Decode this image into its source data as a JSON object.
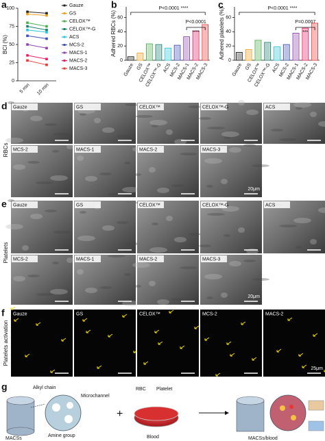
{
  "chart_data": [
    {
      "panel": "a",
      "type": "line",
      "y_label": "BCI (%)",
      "categories": [
        "5 min",
        "10 min"
      ],
      "ylim": [
        0,
        100
      ],
      "yticks": [
        0,
        25,
        50,
        75,
        100
      ],
      "series": [
        {
          "name": "Gauze",
          "color": "#222222",
          "values": [
            95,
            93
          ]
        },
        {
          "name": "GS",
          "color": "#f0a020",
          "values": [
            92,
            90
          ]
        },
        {
          "name": "CELOX™",
          "color": "#4caf50",
          "values": [
            80,
            75
          ]
        },
        {
          "name": "CELOX™-G",
          "color": "#1a7f6e",
          "values": [
            75,
            70
          ]
        },
        {
          "name": "ACS",
          "color": "#26c6da",
          "values": [
            70,
            67
          ]
        },
        {
          "name": "MCS-2",
          "color": "#3f51b5",
          "values": [
            62,
            58
          ]
        },
        {
          "name": "MACS-1",
          "color": "#8e44ad",
          "values": [
            50,
            45
          ]
        },
        {
          "name": "MACS-2",
          "color": "#e91e63",
          "values": [
            35,
            30
          ]
        },
        {
          "name": "MACS-3",
          "color": "#e53935",
          "values": [
            28,
            22
          ]
        }
      ]
    },
    {
      "panel": "b",
      "type": "bar",
      "y_label": "Adhered RBCs (%)",
      "categories": [
        "Gauze",
        "GS",
        "CELOX™",
        "CELOX™-G",
        "ACS",
        "MCS-2",
        "MACS-1",
        "MACS-2",
        "MACS-3"
      ],
      "values": [
        5,
        10,
        23,
        22,
        17,
        21,
        33,
        41,
        50
      ],
      "colors": [
        "#222222",
        "#f0a020",
        "#4caf50",
        "#1a7f6e",
        "#26c6da",
        "#3f51b5",
        "#8e44ad",
        "#e91e63",
        "#e53935"
      ],
      "ylim": [
        0,
        75
      ],
      "yticks": [
        0,
        20,
        40,
        60
      ],
      "annotations": [
        "P<0.0001 ****",
        "P<0.0001",
        "****"
      ]
    },
    {
      "panel": "c",
      "type": "bar",
      "y_label": "Adhered platelets (%)",
      "categories": [
        "Gauze",
        "GS",
        "CELOX™",
        "CELOX™-G",
        "ACS",
        "MCS-2",
        "MACS-1",
        "MACS-2",
        "MACS-3"
      ],
      "values": [
        11,
        15,
        28,
        25,
        19,
        22,
        38,
        45,
        52
      ],
      "colors": [
        "#222222",
        "#f0a020",
        "#4caf50",
        "#1a7f6e",
        "#26c6da",
        "#3f51b5",
        "#8e44ad",
        "#e91e63",
        "#e53935"
      ],
      "ylim": [
        0,
        75
      ],
      "yticks": [
        0,
        20,
        40,
        60
      ],
      "annotations": [
        "P<0.0001 ****",
        "P=0.0007",
        "***"
      ]
    }
  ],
  "panel_d": {
    "label": "d",
    "row_label": "RBCs",
    "images": [
      "Gauze",
      "GS",
      "CELOX™",
      "CELOX™-G",
      "ACS",
      "MCS-2",
      "MACS-1",
      "MACS-2",
      "MACS-3"
    ],
    "scale_bar": "20μm"
  },
  "panel_e": {
    "label": "e",
    "row_label": "Platelets",
    "images": [
      "Gauze",
      "GS",
      "CELOX™",
      "CELOX™-G",
      "ACS",
      "MCS-2",
      "MACS-1",
      "MACS-2",
      "MACS-3"
    ],
    "scale_bar": "20μm"
  },
  "panel_f": {
    "label": "f",
    "row_label": "Platelets activation",
    "images": [
      "Gauze",
      "GS",
      "CELOX™",
      "MCS-2",
      "MACS-2"
    ],
    "scale_bar": "25μm"
  },
  "panel_g": {
    "label": "g",
    "alkyl": "Alkyl chain",
    "channel": "Microchannel",
    "amine": "Amine group",
    "macs": "MACSs",
    "plus": "+",
    "rbc": "RBC",
    "platelet": "Platelet",
    "blood": "Blood",
    "result": "MACSs/blood"
  }
}
